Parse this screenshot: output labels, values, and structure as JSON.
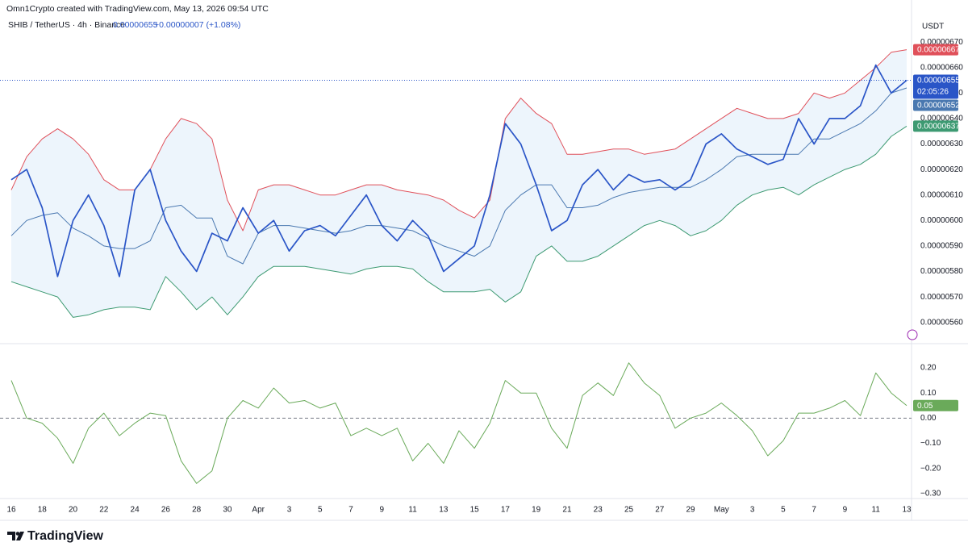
{
  "header": {
    "credit": "Omn1Crypto created with TradingView.com, May 13, 2026 09:54 UTC",
    "symbol": "SHIB / TetherUS · 4h · Binance",
    "price": "0.00000655",
    "change": "+0.00000007 (+1.08%)"
  },
  "currency": "USDT",
  "footer": {
    "brand": "TradingView"
  },
  "chart_data": [
    {
      "type": "line",
      "ylim": [
        5.52e-06,
        6.77e-06
      ],
      "yticks": [
        {
          "value": 5.6e-06,
          "label": "0.00000560"
        },
        {
          "value": 5.7e-06,
          "label": "0.00000570"
        },
        {
          "value": 5.8e-06,
          "label": "0.00000580"
        },
        {
          "value": 5.9e-06,
          "label": "0.00000590"
        },
        {
          "value": 6e-06,
          "label": "0.00000600"
        },
        {
          "value": 6.1e-06,
          "label": "0.00000610"
        },
        {
          "value": 6.2e-06,
          "label": "0.00000620"
        },
        {
          "value": 6.3e-06,
          "label": "0.00000630"
        },
        {
          "value": 6.4e-06,
          "label": "0.00000640"
        },
        {
          "value": 6.5e-06,
          "label": "0.00000650"
        },
        {
          "value": 6.6e-06,
          "label": "0.00000660"
        },
        {
          "value": 6.7e-06,
          "label": "0.00000670"
        }
      ],
      "grid": false,
      "band_fill": "#e8f3fb",
      "series": [
        {
          "color": "#e0505a",
          "width": 1,
          "last_label": "0.00000667",
          "values": [
            6.12e-06,
            6.25e-06,
            6.32e-06,
            6.36e-06,
            6.32e-06,
            6.26e-06,
            6.16e-06,
            6.12e-06,
            6.12e-06,
            6.2e-06,
            6.32e-06,
            6.4e-06,
            6.38e-06,
            6.32e-06,
            6.08e-06,
            5.96e-06,
            6.12e-06,
            6.14e-06,
            6.14e-06,
            6.12e-06,
            6.1e-06,
            6.1e-06,
            6.12e-06,
            6.14e-06,
            6.14e-06,
            6.12e-06,
            6.11e-06,
            6.1e-06,
            6.08e-06,
            6.04e-06,
            6.01e-06,
            6.08e-06,
            6.4e-06,
            6.48e-06,
            6.42e-06,
            6.38e-06,
            6.26e-06,
            6.26e-06,
            6.27e-06,
            6.28e-06,
            6.28e-06,
            6.26e-06,
            6.27e-06,
            6.28e-06,
            6.32e-06,
            6.36e-06,
            6.4e-06,
            6.44e-06,
            6.42e-06,
            6.4e-06,
            6.4e-06,
            6.42e-06,
            6.5e-06,
            6.48e-06,
            6.5e-06,
            6.55e-06,
            6.6e-06,
            6.66e-06,
            6.67e-06
          ]
        },
        {
          "color": "#4a78b0",
          "width": 1,
          "last_label": "0.00000652",
          "values": [
            5.94e-06,
            6e-06,
            6.02e-06,
            6.03e-06,
            5.97e-06,
            5.94e-06,
            5.9e-06,
            5.89e-06,
            5.89e-06,
            5.92e-06,
            6.05e-06,
            6.06e-06,
            6.01e-06,
            6.01e-06,
            5.86e-06,
            5.83e-06,
            5.95e-06,
            5.98e-06,
            5.98e-06,
            5.97e-06,
            5.96e-06,
            5.95e-06,
            5.96e-06,
            5.98e-06,
            5.98e-06,
            5.97e-06,
            5.96e-06,
            5.93e-06,
            5.9e-06,
            5.88e-06,
            5.86e-06,
            5.9e-06,
            6.04e-06,
            6.1e-06,
            6.14e-06,
            6.14e-06,
            6.05e-06,
            6.05e-06,
            6.06e-06,
            6.09e-06,
            6.11e-06,
            6.12e-06,
            6.13e-06,
            6.13e-06,
            6.13e-06,
            6.16e-06,
            6.2e-06,
            6.25e-06,
            6.26e-06,
            6.26e-06,
            6.26e-06,
            6.26e-06,
            6.32e-06,
            6.32e-06,
            6.35e-06,
            6.38e-06,
            6.43e-06,
            6.5e-06,
            6.52e-06
          ]
        },
        {
          "color": "#3d9a72",
          "width": 1,
          "last_label": "0.00000637",
          "values": [
            5.76e-06,
            5.74e-06,
            5.72e-06,
            5.7e-06,
            5.62e-06,
            5.63e-06,
            5.65e-06,
            5.66e-06,
            5.66e-06,
            5.65e-06,
            5.78e-06,
            5.72e-06,
            5.65e-06,
            5.7e-06,
            5.63e-06,
            5.7e-06,
            5.78e-06,
            5.82e-06,
            5.82e-06,
            5.82e-06,
            5.81e-06,
            5.8e-06,
            5.79e-06,
            5.81e-06,
            5.82e-06,
            5.82e-06,
            5.81e-06,
            5.76e-06,
            5.72e-06,
            5.72e-06,
            5.72e-06,
            5.73e-06,
            5.68e-06,
            5.72e-06,
            5.86e-06,
            5.9e-06,
            5.84e-06,
            5.84e-06,
            5.86e-06,
            5.9e-06,
            5.94e-06,
            5.98e-06,
            6e-06,
            5.98e-06,
            5.94e-06,
            5.96e-06,
            6e-06,
            6.06e-06,
            6.1e-06,
            6.12e-06,
            6.13e-06,
            6.1e-06,
            6.14e-06,
            6.17e-06,
            6.2e-06,
            6.22e-06,
            6.26e-06,
            6.33e-06,
            6.37e-06
          ]
        },
        {
          "color": "#2a55c7",
          "width": 1.7,
          "last_label": "0.00000655",
          "countdown": "02:05:26",
          "values": [
            6.16e-06,
            6.2e-06,
            6.05e-06,
            5.78e-06,
            6e-06,
            6.1e-06,
            5.98e-06,
            5.78e-06,
            6.12e-06,
            6.2e-06,
            6e-06,
            5.88e-06,
            5.8e-06,
            5.95e-06,
            5.92e-06,
            6.05e-06,
            5.95e-06,
            6e-06,
            5.88e-06,
            5.96e-06,
            5.98e-06,
            5.94e-06,
            6.02e-06,
            6.1e-06,
            5.98e-06,
            5.92e-06,
            6e-06,
            5.94e-06,
            5.8e-06,
            5.85e-06,
            5.9e-06,
            6.1e-06,
            6.38e-06,
            6.3e-06,
            6.14e-06,
            5.96e-06,
            6e-06,
            6.14e-06,
            6.2e-06,
            6.12e-06,
            6.18e-06,
            6.15e-06,
            6.16e-06,
            6.12e-06,
            6.16e-06,
            6.3e-06,
            6.34e-06,
            6.28e-06,
            6.25e-06,
            6.22e-06,
            6.24e-06,
            6.4e-06,
            6.3e-06,
            6.4e-06,
            6.4e-06,
            6.45e-06,
            6.61e-06,
            6.5e-06,
            6.55e-06
          ]
        }
      ]
    },
    {
      "type": "line",
      "categories": [
        "16",
        null,
        "18",
        null,
        "20",
        null,
        "22",
        null,
        "24",
        null,
        "26",
        null,
        "28",
        null,
        "30",
        null,
        "Apr",
        null,
        "3",
        null,
        "5",
        null,
        "7",
        null,
        "9",
        null,
        "11",
        null,
        "13",
        null,
        "15",
        null,
        "17",
        null,
        "19",
        null,
        "21",
        null,
        "23",
        null,
        "25",
        null,
        "27",
        null,
        "29",
        null,
        "May",
        null,
        "3",
        null,
        "5",
        null,
        "7",
        null,
        "9",
        null,
        "11",
        null,
        "13"
      ],
      "ylim": [
        -0.32,
        0.29
      ],
      "yticks": [
        {
          "value": 0.2,
          "label": "0.20"
        },
        {
          "value": 0.1,
          "label": "0.10"
        },
        {
          "value": 0,
          "label": "0.00"
        },
        {
          "value": -0.1,
          "label": "−0.10"
        },
        {
          "value": -0.2,
          "label": "−0.20"
        },
        {
          "value": -0.3,
          "label": "−0.30"
        }
      ],
      "grid": false,
      "zero_line": true,
      "series": [
        {
          "color": "#6aaa5a",
          "width": 1,
          "last_label": "0.05",
          "values": [
            0.15,
            0,
            -0.02,
            -0.08,
            -0.18,
            -0.04,
            0.02,
            -0.07,
            -0.02,
            0.02,
            0.01,
            -0.17,
            -0.26,
            -0.21,
            0,
            0.07,
            0.04,
            0.12,
            0.06,
            0.07,
            0.04,
            0.06,
            -0.07,
            -0.04,
            -0.07,
            -0.04,
            -0.17,
            -0.1,
            -0.18,
            -0.05,
            -0.12,
            -0.02,
            0.15,
            0.1,
            0.1,
            -0.04,
            -0.12,
            0.09,
            0.14,
            0.09,
            0.22,
            0.14,
            0.09,
            -0.04,
            0,
            0.02,
            0.06,
            0.01,
            -0.05,
            -0.15,
            -0.09,
            0.02,
            0.02,
            0.04,
            0.07,
            0.01,
            0.18,
            0.1,
            0.05
          ]
        }
      ]
    }
  ]
}
